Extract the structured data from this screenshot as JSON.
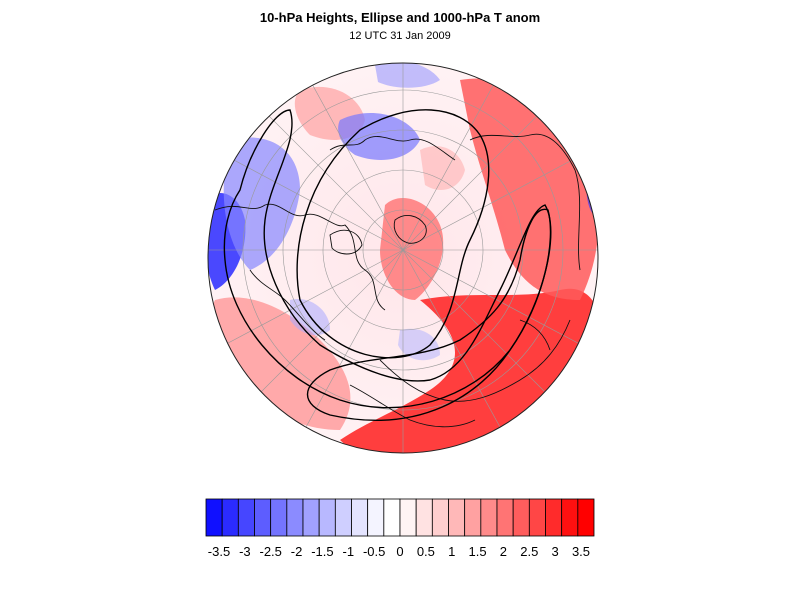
{
  "map": {
    "title": "10-hPa Heights, Ellipse and 1000-hPa T anom",
    "subtitle": "12 UTC 31 Jan 2009"
  },
  "colorbar": {
    "labels": [
      "-3.5",
      "-3",
      "-2.5",
      "-2",
      "-1.5",
      "-1",
      "-0.5",
      "0",
      "0.5",
      "1",
      "1.5",
      "2",
      "2.5",
      "3",
      "3.5"
    ],
    "colors": [
      "#1010ff",
      "#2b2bff",
      "#4646ff",
      "#5d5dff",
      "#7474ff",
      "#8b8bff",
      "#a1a1ff",
      "#b8b8ff",
      "#cfcfff",
      "#e4e4ff",
      "#f4f4ff",
      "#ffffff",
      "#fff4f4",
      "#ffe2e2",
      "#ffcfcf",
      "#ffb8b8",
      "#ffa1a1",
      "#ff8b8b",
      "#ff7474",
      "#ff5d5d",
      "#ff4646",
      "#ff2b2b",
      "#ff1010",
      "#ff0000"
    ],
    "min": -3.5,
    "max": 3.5
  }
}
